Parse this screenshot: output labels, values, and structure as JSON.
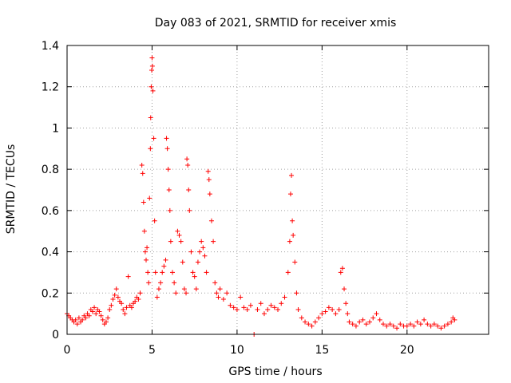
{
  "chart_data": {
    "type": "scatter",
    "title": "Day 083 of 2021, SRMTID for receiver xmis",
    "xlabel": "GPS time / hours",
    "ylabel": "SRMTID / TECUs",
    "xlim": [
      0,
      24.8
    ],
    "ylim": [
      0,
      1.4
    ],
    "xticks": [
      0,
      5,
      10,
      15,
      20
    ],
    "xtick_labels": [
      "0",
      "5",
      "10",
      "15",
      "20"
    ],
    "yticks": [
      0,
      0.2,
      0.4,
      0.6,
      0.8,
      1,
      1.2,
      1.4
    ],
    "ytick_labels": [
      "0",
      "0.2",
      "0.4",
      "0.6",
      "0.8",
      "1",
      "1.2",
      "1.4"
    ],
    "grid": true,
    "marker": "plus",
    "color": "#ff0000",
    "series": [
      {
        "name": "SRMTID",
        "points": [
          [
            0.0,
            0.1
          ],
          [
            0.1,
            0.09
          ],
          [
            0.2,
            0.08
          ],
          [
            0.3,
            0.07
          ],
          [
            0.4,
            0.06
          ],
          [
            0.5,
            0.07
          ],
          [
            0.6,
            0.05
          ],
          [
            0.7,
            0.08
          ],
          [
            0.8,
            0.06
          ],
          [
            0.9,
            0.07
          ],
          [
            1.0,
            0.09
          ],
          [
            1.1,
            0.08
          ],
          [
            1.2,
            0.1
          ],
          [
            1.3,
            0.09
          ],
          [
            1.4,
            0.12
          ],
          [
            1.5,
            0.11
          ],
          [
            1.6,
            0.13
          ],
          [
            1.7,
            0.1
          ],
          [
            1.8,
            0.12
          ],
          [
            1.9,
            0.11
          ],
          [
            2.0,
            0.09
          ],
          [
            2.1,
            0.07
          ],
          [
            2.2,
            0.05
          ],
          [
            2.3,
            0.06
          ],
          [
            2.4,
            0.08
          ],
          [
            2.5,
            0.12
          ],
          [
            2.6,
            0.14
          ],
          [
            2.7,
            0.17
          ],
          [
            2.8,
            0.19
          ],
          [
            2.9,
            0.22
          ],
          [
            3.0,
            0.18
          ],
          [
            3.1,
            0.16
          ],
          [
            3.2,
            0.15
          ],
          [
            3.3,
            0.12
          ],
          [
            3.4,
            0.1
          ],
          [
            3.5,
            0.13
          ],
          [
            3.6,
            0.28
          ],
          [
            3.7,
            0.14
          ],
          [
            3.8,
            0.13
          ],
          [
            3.9,
            0.15
          ],
          [
            4.0,
            0.16
          ],
          [
            4.1,
            0.18
          ],
          [
            4.2,
            0.17
          ],
          [
            4.3,
            0.2
          ],
          [
            4.4,
            0.82
          ],
          [
            4.45,
            0.78
          ],
          [
            4.5,
            0.64
          ],
          [
            4.55,
            0.5
          ],
          [
            4.6,
            0.4
          ],
          [
            4.65,
            0.36
          ],
          [
            4.7,
            0.42
          ],
          [
            4.75,
            0.3
          ],
          [
            4.8,
            0.25
          ],
          [
            4.85,
            0.66
          ],
          [
            4.9,
            0.9
          ],
          [
            4.92,
            1.05
          ],
          [
            4.95,
            1.2
          ],
          [
            4.98,
            1.28
          ],
          [
            5.0,
            1.34
          ],
          [
            5.02,
            1.3
          ],
          [
            5.05,
            1.18
          ],
          [
            5.1,
            0.95
          ],
          [
            5.15,
            0.55
          ],
          [
            5.2,
            0.3
          ],
          [
            5.3,
            0.18
          ],
          [
            5.4,
            0.22
          ],
          [
            5.5,
            0.25
          ],
          [
            5.6,
            0.3
          ],
          [
            5.7,
            0.33
          ],
          [
            5.8,
            0.36
          ],
          [
            5.85,
            0.95
          ],
          [
            5.9,
            0.9
          ],
          [
            5.95,
            0.8
          ],
          [
            6.0,
            0.7
          ],
          [
            6.05,
            0.6
          ],
          [
            6.1,
            0.45
          ],
          [
            6.2,
            0.3
          ],
          [
            6.3,
            0.25
          ],
          [
            6.4,
            0.2
          ],
          [
            6.5,
            0.5
          ],
          [
            6.6,
            0.48
          ],
          [
            6.7,
            0.45
          ],
          [
            6.8,
            0.35
          ],
          [
            6.9,
            0.22
          ],
          [
            7.0,
            0.2
          ],
          [
            7.05,
            0.85
          ],
          [
            7.1,
            0.82
          ],
          [
            7.15,
            0.7
          ],
          [
            7.2,
            0.6
          ],
          [
            7.3,
            0.4
          ],
          [
            7.4,
            0.3
          ],
          [
            7.5,
            0.28
          ],
          [
            7.6,
            0.22
          ],
          [
            7.7,
            0.35
          ],
          [
            7.8,
            0.4
          ],
          [
            7.9,
            0.45
          ],
          [
            8.0,
            0.42
          ],
          [
            8.1,
            0.38
          ],
          [
            8.2,
            0.3
          ],
          [
            8.3,
            0.79
          ],
          [
            8.35,
            0.75
          ],
          [
            8.4,
            0.68
          ],
          [
            8.5,
            0.55
          ],
          [
            8.6,
            0.45
          ],
          [
            8.7,
            0.25
          ],
          [
            8.8,
            0.2
          ],
          [
            8.9,
            0.18
          ],
          [
            9.0,
            0.22
          ],
          [
            9.2,
            0.17
          ],
          [
            9.4,
            0.2
          ],
          [
            9.6,
            0.14
          ],
          [
            9.8,
            0.13
          ],
          [
            10.0,
            0.12
          ],
          [
            10.2,
            0.18
          ],
          [
            10.4,
            0.13
          ],
          [
            10.6,
            0.12
          ],
          [
            10.8,
            0.14
          ],
          [
            11.0,
            0.0
          ],
          [
            11.2,
            0.12
          ],
          [
            11.4,
            0.15
          ],
          [
            11.6,
            0.1
          ],
          [
            11.8,
            0.12
          ],
          [
            12.0,
            0.14
          ],
          [
            12.2,
            0.13
          ],
          [
            12.4,
            0.12
          ],
          [
            12.6,
            0.15
          ],
          [
            12.8,
            0.18
          ],
          [
            13.0,
            0.3
          ],
          [
            13.1,
            0.45
          ],
          [
            13.15,
            0.68
          ],
          [
            13.2,
            0.77
          ],
          [
            13.25,
            0.55
          ],
          [
            13.3,
            0.48
          ],
          [
            13.4,
            0.35
          ],
          [
            13.5,
            0.2
          ],
          [
            13.6,
            0.12
          ],
          [
            13.8,
            0.08
          ],
          [
            14.0,
            0.06
          ],
          [
            14.2,
            0.05
          ],
          [
            14.4,
            0.04
          ],
          [
            14.6,
            0.06
          ],
          [
            14.8,
            0.08
          ],
          [
            15.0,
            0.1
          ],
          [
            15.2,
            0.11
          ],
          [
            15.4,
            0.13
          ],
          [
            15.6,
            0.12
          ],
          [
            15.8,
            0.1
          ],
          [
            16.0,
            0.12
          ],
          [
            16.1,
            0.3
          ],
          [
            16.2,
            0.32
          ],
          [
            16.3,
            0.22
          ],
          [
            16.4,
            0.15
          ],
          [
            16.5,
            0.1
          ],
          [
            16.6,
            0.06
          ],
          [
            16.8,
            0.05
          ],
          [
            17.0,
            0.04
          ],
          [
            17.2,
            0.06
          ],
          [
            17.4,
            0.07
          ],
          [
            17.6,
            0.05
          ],
          [
            17.8,
            0.06
          ],
          [
            18.0,
            0.08
          ],
          [
            18.2,
            0.1
          ],
          [
            18.4,
            0.07
          ],
          [
            18.6,
            0.05
          ],
          [
            18.8,
            0.04
          ],
          [
            19.0,
            0.05
          ],
          [
            19.2,
            0.04
          ],
          [
            19.4,
            0.03
          ],
          [
            19.6,
            0.05
          ],
          [
            19.8,
            0.04
          ],
          [
            20.0,
            0.04
          ],
          [
            20.2,
            0.05
          ],
          [
            20.4,
            0.04
          ],
          [
            20.6,
            0.06
          ],
          [
            20.8,
            0.05
          ],
          [
            21.0,
            0.07
          ],
          [
            21.2,
            0.05
          ],
          [
            21.4,
            0.04
          ],
          [
            21.6,
            0.05
          ],
          [
            21.8,
            0.04
          ],
          [
            22.0,
            0.03
          ],
          [
            22.2,
            0.04
          ],
          [
            22.4,
            0.05
          ],
          [
            22.6,
            0.06
          ],
          [
            22.7,
            0.08
          ],
          [
            22.8,
            0.07
          ]
        ]
      }
    ]
  }
}
